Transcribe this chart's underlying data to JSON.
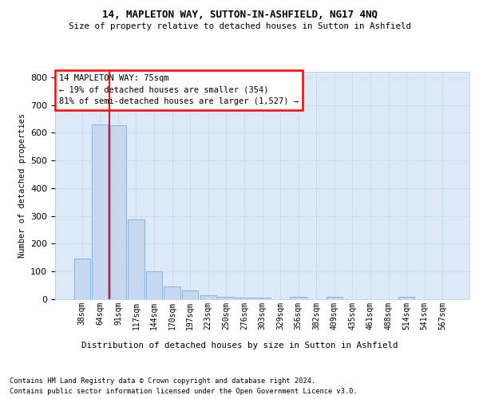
{
  "title1": "14, MAPLETON WAY, SUTTON-IN-ASHFIELD, NG17 4NQ",
  "title2": "Size of property relative to detached houses in Sutton in Ashfield",
  "xlabel": "Distribution of detached houses by size in Sutton in Ashfield",
  "ylabel": "Number of detached properties",
  "footnote1": "Contains HM Land Registry data © Crown copyright and database right 2024.",
  "footnote2": "Contains public sector information licensed under the Open Government Licence v3.0.",
  "annotation_title": "14 MAPLETON WAY: 75sqm",
  "annotation_line1": "← 19% of detached houses are smaller (354)",
  "annotation_line2": "81% of semi-detached houses are larger (1,527) →",
  "bar_categories": [
    "38sqm",
    "64sqm",
    "91sqm",
    "117sqm",
    "144sqm",
    "170sqm",
    "197sqm",
    "223sqm",
    "250sqm",
    "276sqm",
    "303sqm",
    "329sqm",
    "356sqm",
    "382sqm",
    "409sqm",
    "435sqm",
    "461sqm",
    "488sqm",
    "514sqm",
    "541sqm",
    "567sqm"
  ],
  "bar_values": [
    148,
    630,
    628,
    287,
    100,
    47,
    32,
    14,
    10,
    6,
    6,
    0,
    10,
    0,
    8,
    0,
    0,
    0,
    8,
    0,
    0
  ],
  "bar_color": "#c5d8ef",
  "bar_edgecolor": "#7aadda",
  "redline_index": 1.5,
  "ylim": [
    0,
    820
  ],
  "yticks": [
    0,
    100,
    200,
    300,
    400,
    500,
    600,
    700,
    800
  ],
  "grid_color": "#c8daf0",
  "bg_color": "#dce9f7"
}
